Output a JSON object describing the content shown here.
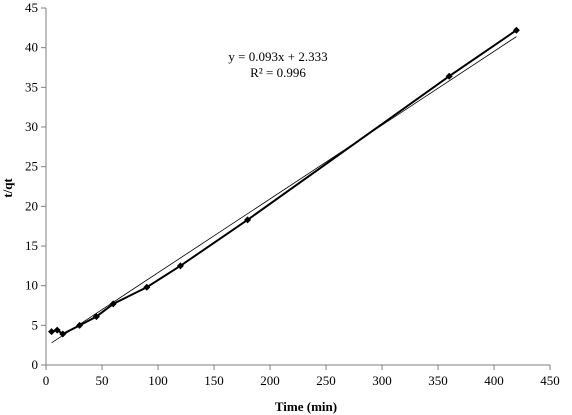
{
  "chart_data": {
    "type": "scatter",
    "xlabel": "Time (min)",
    "ylabel": "t/qt",
    "xlim": [
      0,
      450
    ],
    "ylim": [
      0,
      45
    ],
    "x_ticks": [
      0,
      50,
      100,
      150,
      200,
      250,
      300,
      350,
      400,
      450
    ],
    "y_ticks": [
      0,
      5,
      10,
      15,
      20,
      25,
      30,
      35,
      40,
      45
    ],
    "grid": false,
    "series": [
      {
        "x": [
          5,
          10,
          15,
          30,
          45,
          60,
          90,
          120,
          180,
          360,
          420
        ],
        "y": [
          4.2,
          4.4,
          3.9,
          5.0,
          6.1,
          7.7,
          9.8,
          12.5,
          18.3,
          36.4,
          42.2
        ],
        "style": "markers-with-line",
        "color": "#000000"
      }
    ],
    "trendline": {
      "slope": 0.093,
      "intercept": 2.333,
      "x_range": [
        5,
        420
      ],
      "color": "#000000"
    },
    "annotations": {
      "equation": "y = 0.093x + 2.333",
      "r_squared": "R² = 0.996"
    }
  }
}
